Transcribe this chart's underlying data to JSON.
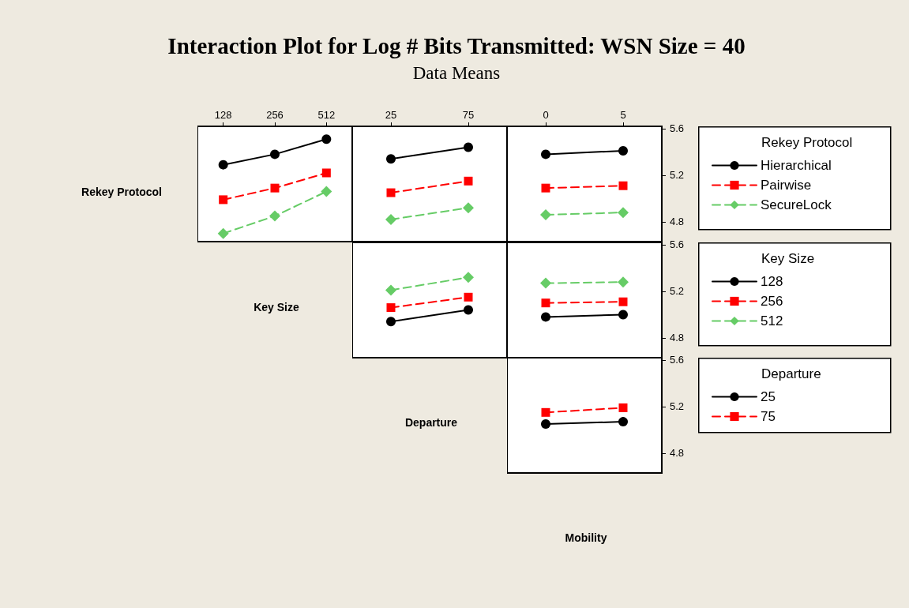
{
  "chart_data": [
    {
      "type": "other",
      "title": "Interaction Plot for Log # Bits Transmitted: WSN Size = 40",
      "subtitle": "Data Means"
    },
    {
      "type": "line",
      "annotations": [
        "Rekey Protocol",
        "Key Size",
        "Departure",
        "Mobility"
      ],
      "categories": [
        "128",
        "256",
        "512"
      ],
      "ylim": [
        4.63,
        5.62
      ],
      "yticks": [
        4.8,
        5.2,
        5.6
      ],
      "tick_labels": "x",
      "series": [
        {
          "color": "#000000",
          "marker": "circle",
          "line_style": "solid",
          "values": [
            5.29,
            5.38,
            5.51
          ]
        },
        {
          "color": "#ff0000",
          "marker": "square",
          "line_style": "dashed",
          "values": [
            4.99,
            5.09,
            5.22
          ]
        },
        {
          "color": "#66cc66",
          "marker": "diamond",
          "line_style": "dashed",
          "values": [
            4.7,
            4.85,
            5.06
          ]
        }
      ]
    },
    {
      "type": "line",
      "categories": [
        "25",
        "75"
      ],
      "ylim": [
        4.63,
        5.62
      ],
      "yticks": [
        4.8,
        5.2,
        5.6
      ],
      "tick_labels": "x",
      "series": [
        {
          "color": "#000000",
          "marker": "circle",
          "line_style": "solid",
          "values": [
            5.34,
            5.44
          ]
        },
        {
          "color": "#ff0000",
          "marker": "square",
          "line_style": "dashed",
          "values": [
            5.05,
            5.15
          ]
        },
        {
          "color": "#66cc66",
          "marker": "diamond",
          "line_style": "dashed",
          "values": [
            4.82,
            4.92
          ]
        }
      ]
    },
    {
      "type": "line",
      "categories": [
        "0",
        "5"
      ],
      "ylim": [
        4.63,
        5.62
      ],
      "yticks": [
        4.8,
        5.2,
        5.6
      ],
      "legend": "right",
      "legend_title": "Rekey Protocol",
      "series": [
        {
          "name": "Hierarchical",
          "color": "#000000",
          "marker": "circle",
          "line_style": "solid",
          "values": [
            5.38,
            5.41
          ]
        },
        {
          "name": "Pairwise",
          "color": "#ff0000",
          "marker": "square",
          "line_style": "dashed",
          "values": [
            5.09,
            5.11
          ]
        },
        {
          "name": "SecureLock",
          "color": "#66cc66",
          "marker": "diamond",
          "line_style": "dashed",
          "values": [
            4.86,
            4.88
          ]
        }
      ]
    },
    {
      "type": "line",
      "categories": [
        null,
        null
      ],
      "ylim": [
        4.63,
        5.62
      ],
      "yticks": [
        4.8,
        5.2,
        5.6
      ],
      "tick_labels": false,
      "series": [
        {
          "color": "#000000",
          "marker": "circle",
          "line_style": "solid",
          "values": [
            4.94,
            5.04
          ]
        },
        {
          "color": "#ff0000",
          "marker": "square",
          "line_style": "dashed",
          "values": [
            5.06,
            5.15
          ]
        },
        {
          "color": "#66cc66",
          "marker": "diamond",
          "line_style": "dashed",
          "values": [
            5.21,
            5.32
          ]
        }
      ]
    },
    {
      "type": "line",
      "categories": [
        null,
        null
      ],
      "ylim": [
        4.63,
        5.62
      ],
      "yticks": [
        4.8,
        5.2,
        5.6
      ],
      "tick_labels": "y",
      "legend": "right",
      "legend_title": "Key Size",
      "series": [
        {
          "name": "128",
          "color": "#000000",
          "marker": "circle",
          "line_style": "solid",
          "values": [
            4.98,
            5.0
          ]
        },
        {
          "name": "256",
          "color": "#ff0000",
          "marker": "square",
          "line_style": "dashed",
          "values": [
            5.1,
            5.11
          ]
        },
        {
          "name": "512",
          "color": "#66cc66",
          "marker": "diamond",
          "line_style": "dashed",
          "values": [
            5.27,
            5.28
          ]
        }
      ]
    },
    {
      "type": "line",
      "categories": [
        null,
        null
      ],
      "ylim": [
        4.63,
        5.62
      ],
      "yticks": [
        4.8,
        5.2,
        5.6
      ],
      "tick_labels": "y",
      "legend": "right",
      "legend_title": "Departure",
      "series": [
        {
          "name": "25",
          "color": "#000000",
          "marker": "circle",
          "line_style": "solid",
          "values": [
            5.05,
            5.07
          ]
        },
        {
          "name": "75",
          "color": "#ff0000",
          "marker": "square",
          "line_style": "dashed",
          "values": [
            5.15,
            5.19
          ]
        }
      ]
    }
  ]
}
